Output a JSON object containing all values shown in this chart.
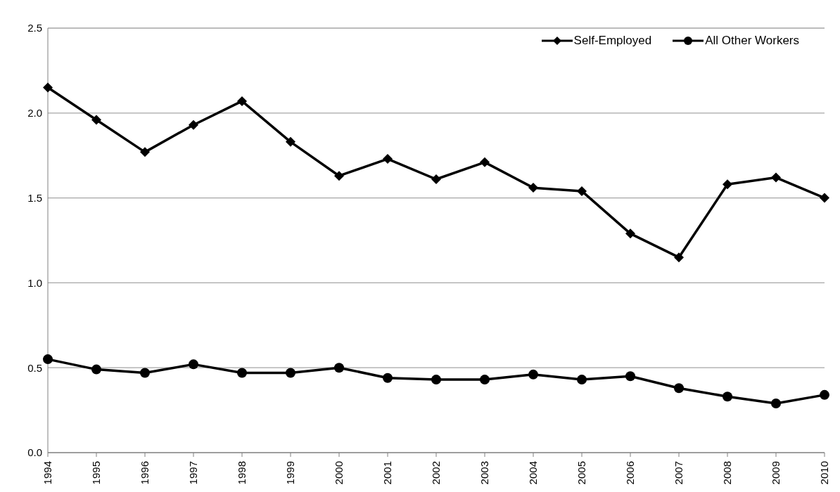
{
  "chart_data": {
    "type": "line",
    "categories": [
      "1994",
      "1995",
      "1996",
      "1997",
      "1998",
      "1999",
      "2000",
      "2001",
      "2002",
      "2003",
      "2004",
      "2005",
      "2006",
      "2007",
      "2008",
      "2009",
      "2010"
    ],
    "series": [
      {
        "name": "Self-Employed",
        "color": "#000000",
        "marker": "diamond",
        "values": [
          2.15,
          1.96,
          1.77,
          1.93,
          2.07,
          1.83,
          1.63,
          1.73,
          1.61,
          1.71,
          1.56,
          1.54,
          1.29,
          1.15,
          1.58,
          1.62,
          1.5
        ]
      },
      {
        "name": "All Other Workers",
        "color": "#000000",
        "marker": "circle",
        "values": [
          0.55,
          0.49,
          0.47,
          0.52,
          0.47,
          0.47,
          0.5,
          0.44,
          0.43,
          0.43,
          0.46,
          0.43,
          0.45,
          0.38,
          0.33,
          0.29,
          0.34
        ]
      }
    ],
    "ylim": [
      0,
      2.5
    ],
    "yticks": [
      {
        "value": 0,
        "label": "0.0"
      },
      {
        "value": 0.5,
        "label": "0.5"
      },
      {
        "value": 1,
        "label": "1.0"
      },
      {
        "value": 1.5,
        "label": "1.5"
      },
      {
        "value": 2,
        "label": "2.0"
      },
      {
        "value": 2.5,
        "label": "2.5"
      }
    ],
    "grid": "y",
    "legend": "top right",
    "line_style": "solid"
  }
}
